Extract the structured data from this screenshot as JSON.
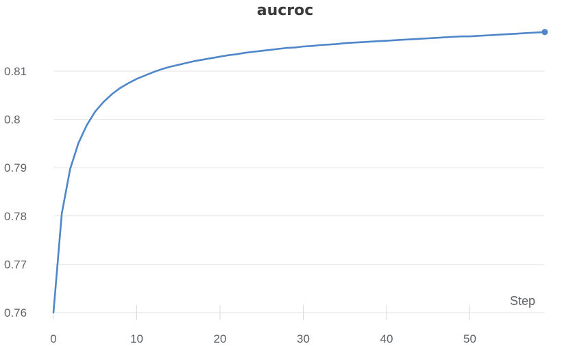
{
  "chart_data": {
    "type": "line",
    "title": "aucroc",
    "xlabel": "Step",
    "ylabel": "",
    "xlim": [
      0,
      59
    ],
    "ylim": [
      0.76,
      0.8185
    ],
    "x_ticks": [
      0,
      10,
      20,
      30,
      40,
      50
    ],
    "x_tick_labels": [
      "0",
      "10",
      "20",
      "30",
      "40",
      "50"
    ],
    "y_ticks": [
      0.76,
      0.77,
      0.78,
      0.79,
      0.8,
      0.81
    ],
    "y_tick_labels": [
      "0.76",
      "0.77",
      "0.78",
      "0.79",
      "0.8",
      "0.81"
    ],
    "grid": true,
    "colors": {
      "line": "#4e86c9",
      "grid": "#e6e6e6",
      "tick": "#d9d9d9"
    },
    "series": [
      {
        "x": [
          0,
          1,
          2,
          3,
          4,
          5,
          6,
          7,
          8,
          9,
          10,
          11,
          12,
          13,
          14,
          15,
          16,
          17,
          18,
          19,
          20,
          21,
          22,
          23,
          24,
          25,
          26,
          27,
          28,
          29,
          30,
          31,
          32,
          33,
          34,
          35,
          36,
          37,
          38,
          39,
          40,
          41,
          42,
          43,
          44,
          45,
          46,
          47,
          48,
          49,
          50,
          51,
          52,
          53,
          54,
          55,
          56,
          57,
          58,
          59
        ],
        "y": [
          0.76,
          0.7805,
          0.7897,
          0.7951,
          0.7988,
          0.8016,
          0.8036,
          0.8052,
          0.8065,
          0.8075,
          0.8084,
          0.8091,
          0.8098,
          0.8104,
          0.8109,
          0.8113,
          0.8117,
          0.8121,
          0.8124,
          0.8127,
          0.813,
          0.8133,
          0.8135,
          0.8138,
          0.814,
          0.8142,
          0.8144,
          0.8146,
          0.8148,
          0.8149,
          0.8151,
          0.8152,
          0.8154,
          0.8155,
          0.8156,
          0.8158,
          0.8159,
          0.816,
          0.8161,
          0.8162,
          0.8163,
          0.8164,
          0.8165,
          0.8166,
          0.8167,
          0.8168,
          0.8169,
          0.817,
          0.8171,
          0.8172,
          0.8172,
          0.8173,
          0.8174,
          0.8175,
          0.8176,
          0.8177,
          0.8178,
          0.8179,
          0.818,
          0.8181
        ]
      }
    ]
  }
}
